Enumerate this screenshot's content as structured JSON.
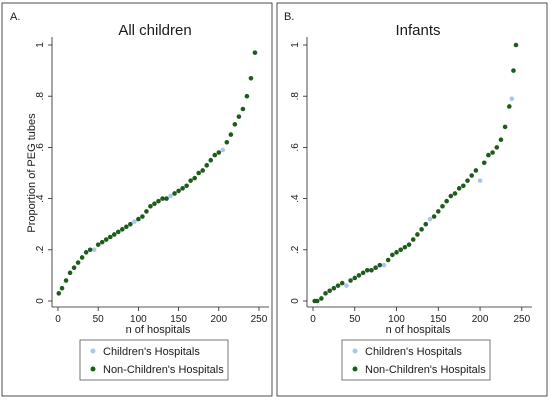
{
  "figure": {
    "panel_a_letter": "A.",
    "panel_b_letter": "B."
  },
  "chart_data": [
    {
      "type": "scatter",
      "title": "All children",
      "xlabel": "n of hospitals",
      "ylabel": "Proportion of PEG tubes",
      "xlim": [
        0,
        255
      ],
      "ylim": [
        0,
        1
      ],
      "xticks": [
        0,
        50,
        100,
        150,
        200,
        250
      ],
      "yticks": [
        0,
        0.2,
        0.4,
        0.6,
        0.8,
        1
      ],
      "ytick_labels": [
        "0",
        ".2",
        ".4",
        ".6",
        ".8",
        "1"
      ],
      "grid": false,
      "legend_position": "bottom",
      "series": [
        {
          "name": "Children's Hospitals",
          "color": "#a9c7e6",
          "x": [
            45,
            95,
            140,
            205
          ],
          "y": [
            0.2,
            0.31,
            0.41,
            0.59
          ]
        },
        {
          "name": "Non-Children's Hospitals",
          "color": "#1e5c1e",
          "x": [
            1,
            5,
            10,
            15,
            20,
            25,
            30,
            35,
            40,
            50,
            55,
            60,
            65,
            70,
            75,
            80,
            85,
            90,
            100,
            105,
            110,
            115,
            120,
            125,
            130,
            135,
            145,
            150,
            155,
            160,
            165,
            170,
            175,
            180,
            185,
            190,
            195,
            200,
            210,
            215,
            220,
            225,
            230,
            235,
            240,
            245
          ],
          "y": [
            0.03,
            0.05,
            0.08,
            0.11,
            0.13,
            0.15,
            0.17,
            0.19,
            0.2,
            0.22,
            0.23,
            0.24,
            0.25,
            0.26,
            0.27,
            0.28,
            0.29,
            0.3,
            0.32,
            0.33,
            0.35,
            0.37,
            0.38,
            0.39,
            0.4,
            0.4,
            0.42,
            0.43,
            0.44,
            0.45,
            0.47,
            0.48,
            0.5,
            0.51,
            0.53,
            0.55,
            0.57,
            0.58,
            0.62,
            0.65,
            0.69,
            0.72,
            0.75,
            0.8,
            0.87,
            0.97
          ]
        }
      ]
    },
    {
      "type": "scatter",
      "title": "Infants",
      "xlabel": "n of hospitals",
      "ylabel": "",
      "xlim": [
        0,
        255
      ],
      "ylim": [
        0,
        1
      ],
      "xticks": [
        0,
        50,
        100,
        150,
        200,
        250
      ],
      "yticks": [
        0,
        0.2,
        0.4,
        0.6,
        0.8,
        1
      ],
      "ytick_labels": [
        "0",
        ".2",
        ".4",
        ".6",
        ".8",
        "1"
      ],
      "grid": false,
      "legend_position": "bottom",
      "series": [
        {
          "name": "Children's Hospitals",
          "color": "#a9c7e6",
          "x": [
            40,
            85,
            140,
            200,
            238
          ],
          "y": [
            0.06,
            0.14,
            0.32,
            0.47,
            0.79
          ]
        },
        {
          "name": "Non-Children's Hospitals",
          "color": "#1e5c1e",
          "x": [
            2,
            5,
            10,
            15,
            20,
            25,
            30,
            35,
            45,
            50,
            55,
            60,
            65,
            70,
            75,
            80,
            90,
            95,
            100,
            105,
            110,
            115,
            120,
            125,
            130,
            135,
            145,
            150,
            155,
            160,
            165,
            170,
            175,
            180,
            185,
            190,
            195,
            205,
            210,
            215,
            220,
            225,
            230,
            235,
            240,
            243
          ],
          "y": [
            0,
            0,
            0.01,
            0.03,
            0.04,
            0.05,
            0.06,
            0.07,
            0.08,
            0.09,
            0.1,
            0.11,
            0.12,
            0.12,
            0.13,
            0.14,
            0.16,
            0.18,
            0.19,
            0.2,
            0.21,
            0.22,
            0.24,
            0.26,
            0.28,
            0.3,
            0.33,
            0.35,
            0.37,
            0.39,
            0.41,
            0.42,
            0.44,
            0.45,
            0.47,
            0.49,
            0.51,
            0.54,
            0.57,
            0.58,
            0.6,
            0.63,
            0.68,
            0.76,
            0.9,
            1.0
          ]
        }
      ]
    }
  ]
}
